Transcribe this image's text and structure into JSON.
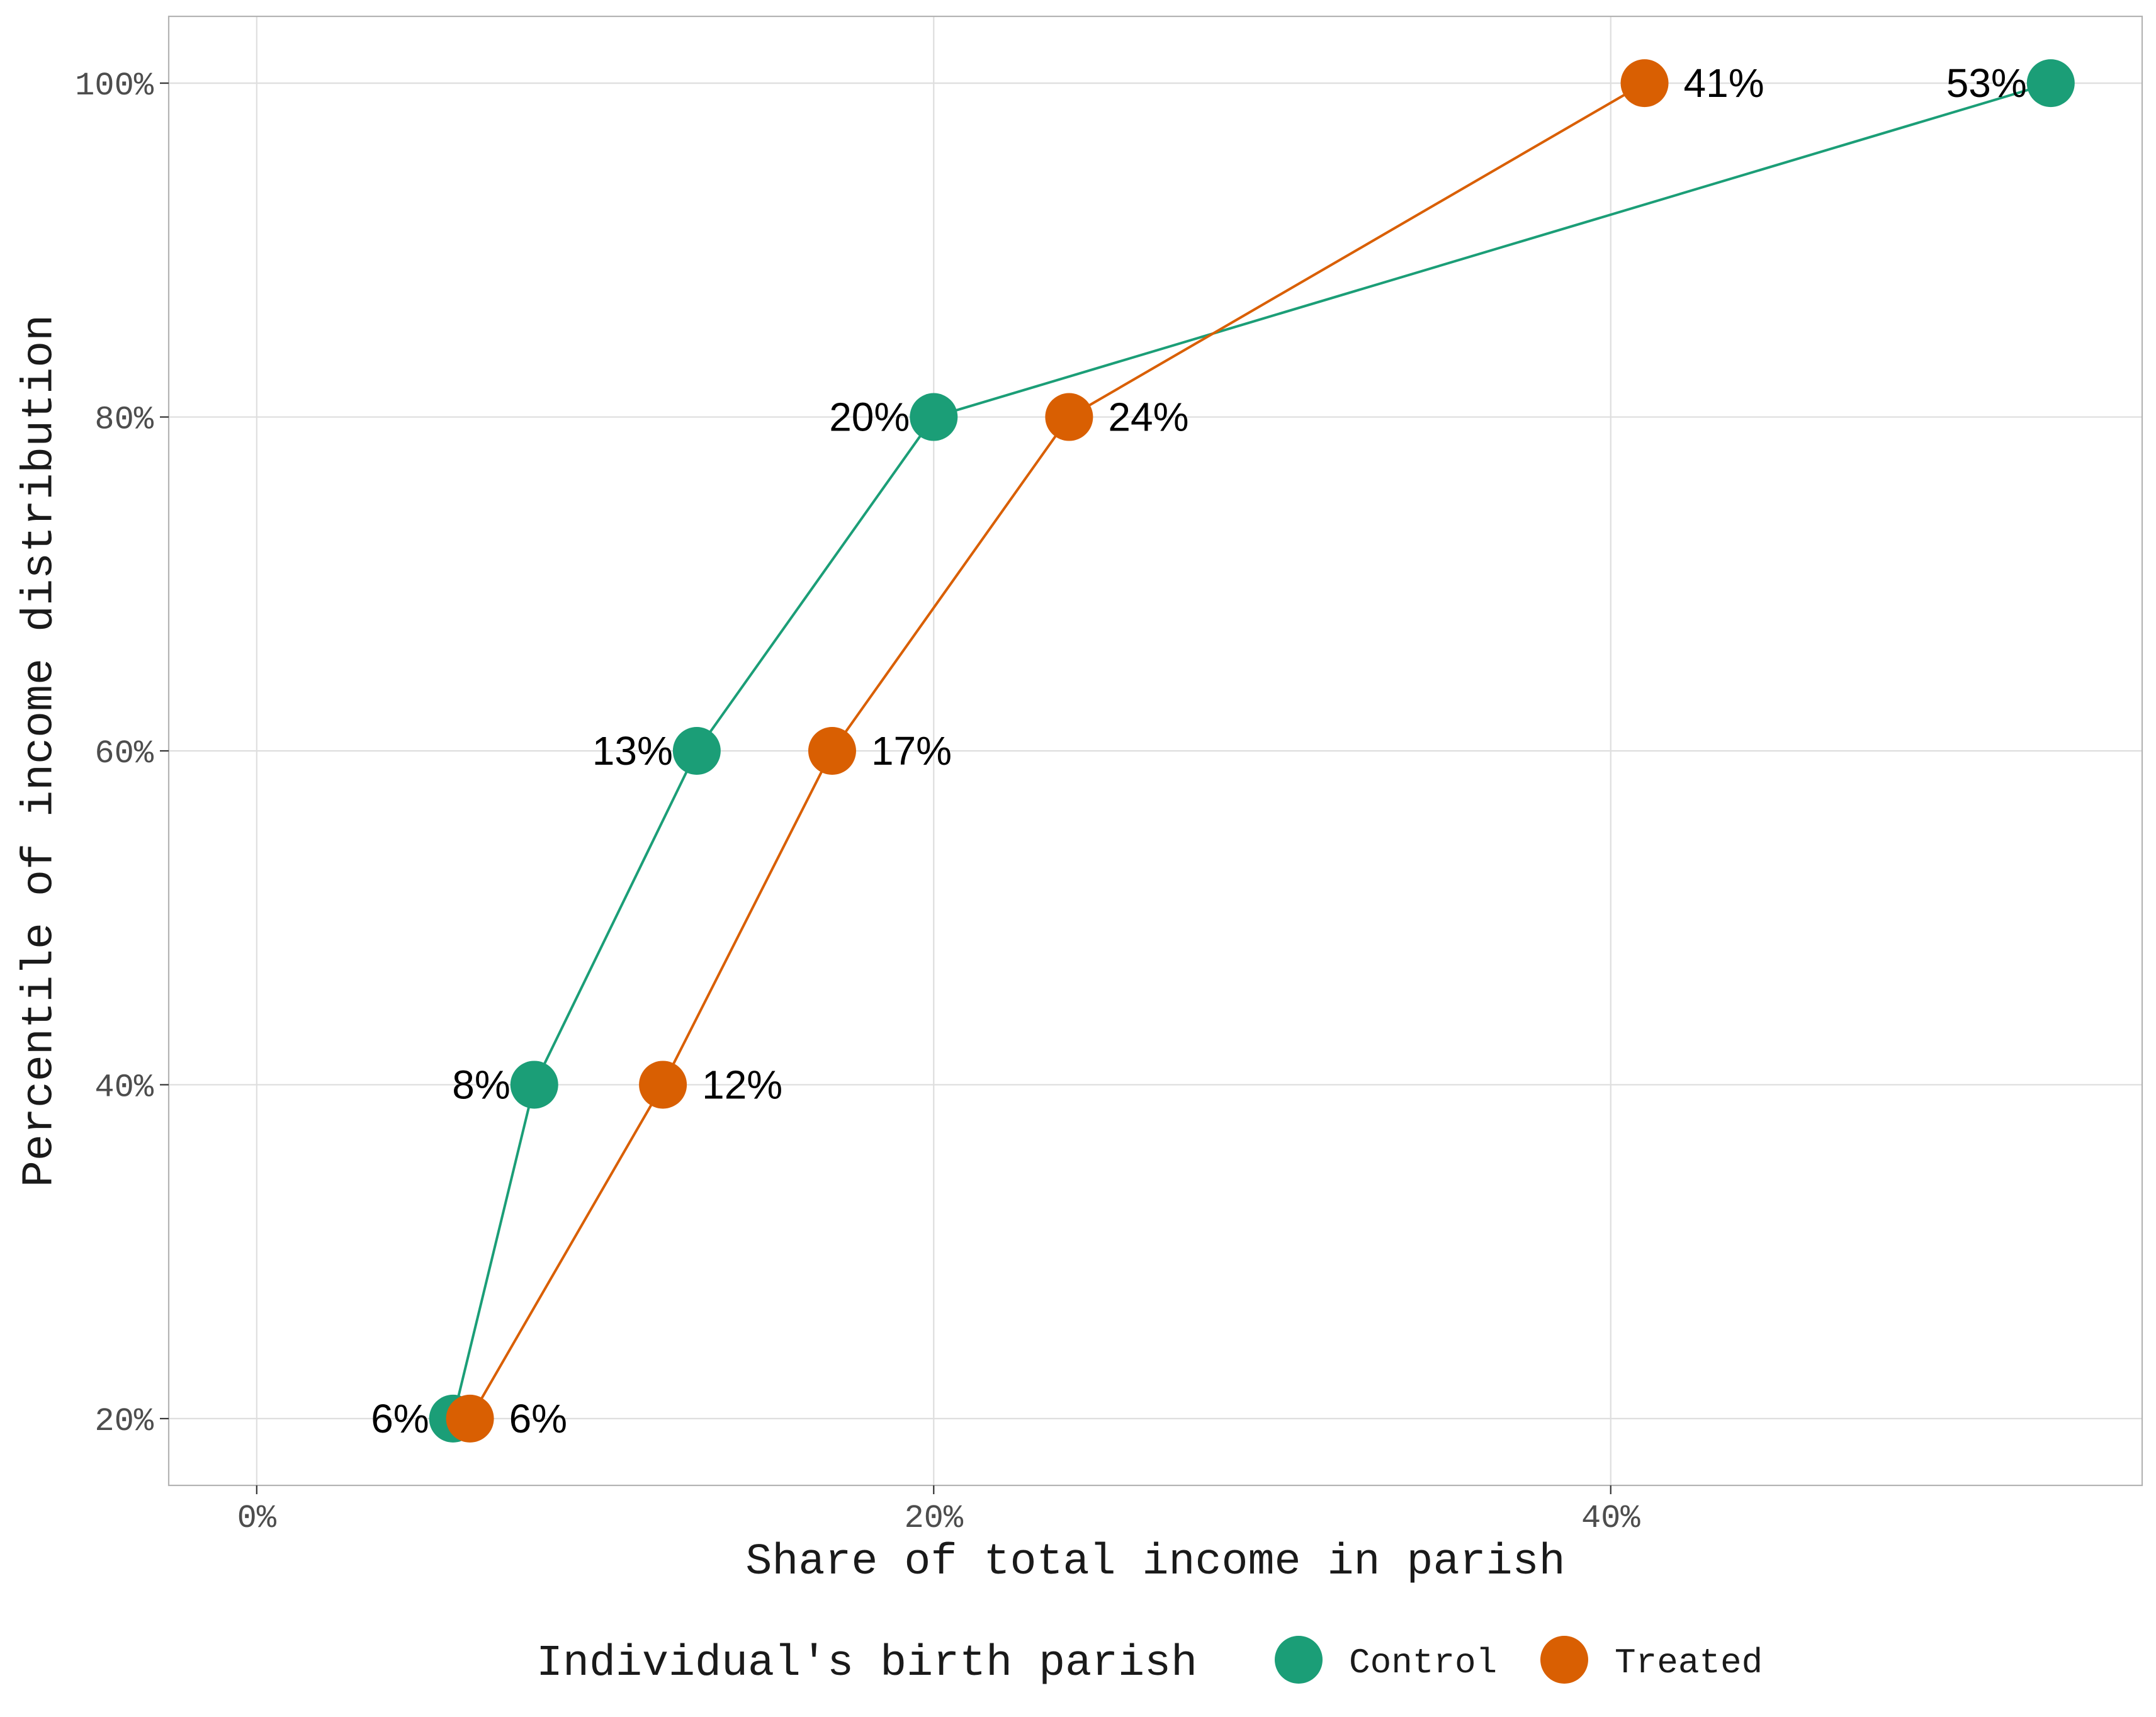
{
  "chart_data": {
    "type": "line",
    "xlabel": "Share of total income in parish",
    "ylabel": "Percentile of income distribution",
    "xlim": [
      -2.6,
      55.7
    ],
    "ylim": [
      16,
      104
    ],
    "x_ticks": [
      0,
      20,
      40
    ],
    "x_tick_labels": [
      "0%",
      "20%",
      "40%"
    ],
    "y_ticks": [
      20,
      40,
      60,
      80,
      100
    ],
    "y_tick_labels": [
      "20%",
      "40%",
      "60%",
      "80%",
      "100%"
    ],
    "grid": true,
    "legend": {
      "title": "Individual's birth parish",
      "position": "bottom"
    },
    "series": [
      {
        "name": "Control",
        "color": "#1B9E77",
        "label_side": "left",
        "points": [
          {
            "x": 5.8,
            "y": 20,
            "label": "6%"
          },
          {
            "x": 8.2,
            "y": 40,
            "label": "8%"
          },
          {
            "x": 13.0,
            "y": 60,
            "label": "13%"
          },
          {
            "x": 20.0,
            "y": 80,
            "label": "20%"
          },
          {
            "x": 53.0,
            "y": 100,
            "label": "53%"
          }
        ]
      },
      {
        "name": "Treated",
        "color": "#D95F02",
        "label_side": "right",
        "points": [
          {
            "x": 6.3,
            "y": 20,
            "label": "6%"
          },
          {
            "x": 12.0,
            "y": 40,
            "label": "12%"
          },
          {
            "x": 17.0,
            "y": 60,
            "label": "17%"
          },
          {
            "x": 24.0,
            "y": 80,
            "label": "24%"
          },
          {
            "x": 41.0,
            "y": 100,
            "label": "41%"
          }
        ]
      }
    ]
  }
}
